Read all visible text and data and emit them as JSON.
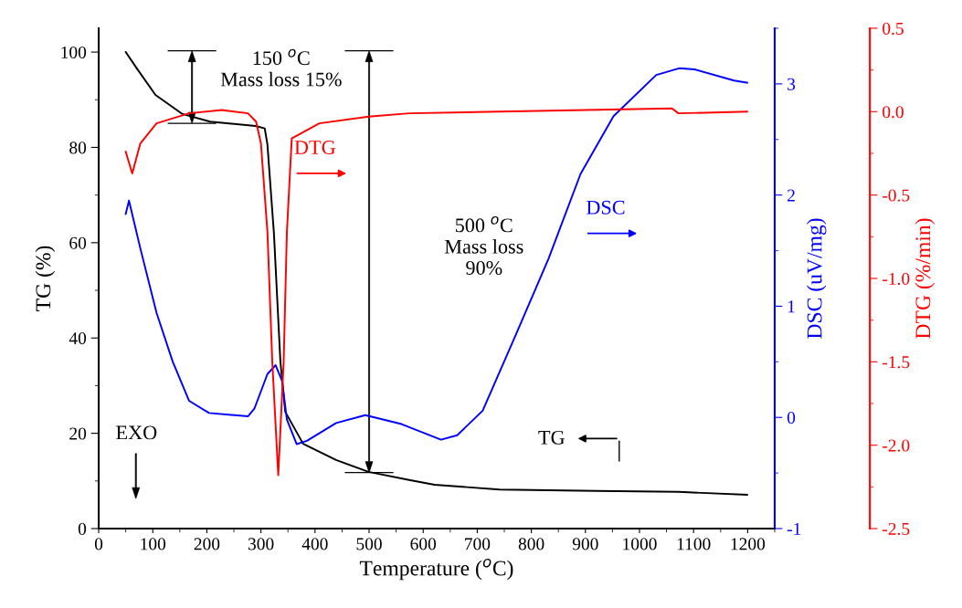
{
  "chart_data": {
    "type": "line",
    "xlabel": "Temperature ($^{o}$C)",
    "ylabel": "TG (%)",
    "y2label": "DSC (uV/mg)",
    "y3label": "DTG (%/min)",
    "xlim": [
      0,
      1250
    ],
    "xticks": [
      0,
      100,
      200,
      300,
      400,
      500,
      600,
      700,
      800,
      900,
      1000,
      1100,
      1200
    ],
    "ylim": [
      0,
      105
    ],
    "yticks": [
      0,
      20,
      40,
      60,
      80,
      100
    ],
    "y2lim": [
      -1,
      3.5
    ],
    "y2ticks": [
      -1,
      0,
      1,
      2,
      3
    ],
    "y3lim": [
      -2.5,
      0.5
    ],
    "y3ticks": [
      {
        "value": -2.5,
        "label": "-2.5"
      },
      {
        "value": -2.0,
        "label": "-2.0"
      },
      {
        "value": -1.5,
        "label": "-1.5"
      },
      {
        "value": -1.0,
        "label": "-1.0"
      },
      {
        "value": -0.5,
        "label": "-0.5"
      },
      {
        "value": 0,
        "label": "0.0"
      },
      {
        "value": 0.5,
        "label": "0.5"
      }
    ],
    "grid": false,
    "marker": "none",
    "line_style": "solid",
    "series": [
      {
        "name": "TG",
        "color": "#000000",
        "x": [
          50,
          71,
          105,
          155,
          206,
          290,
          307,
          312,
          324,
          336,
          345,
          378,
          439,
          499,
          574,
          621,
          741,
          921,
          1072,
          1199
        ],
        "values": [
          100,
          96.5,
          91,
          87,
          85.4,
          84.5,
          84,
          80.6,
          62,
          35,
          24.5,
          17.8,
          14.4,
          11.9,
          10.2,
          9.2,
          8.2,
          7.9,
          7.7,
          7.1
        ]
      },
      {
        "name": "DTG",
        "color": "#ff0000",
        "axis": "y3",
        "x": [
          50,
          62,
          77,
          107,
          167,
          228,
          276,
          291,
          300,
          312,
          321,
          332,
          342,
          348,
          357,
          408,
          499,
          574,
          741,
          1060,
          1072,
          1199
        ],
        "values": [
          -0.24,
          -0.37,
          -0.19,
          -0.07,
          -0.01,
          0.01,
          -0.01,
          -0.06,
          -0.19,
          -0.72,
          -1.5,
          -2.18,
          -1.5,
          -0.72,
          -0.16,
          -0.07,
          -0.03,
          -0.01,
          0.0,
          0.02,
          -0.01,
          0.0
        ]
      },
      {
        "name": "DSC",
        "color": "#0000ff",
        "axis": "y2",
        "x": [
          50,
          56,
          77,
          107,
          137,
          167,
          204,
          276,
          288,
          312,
          327,
          339,
          348,
          366,
          385,
          439,
          493,
          560,
          633,
          663,
          710,
          771,
          832,
          891,
          952,
          1031,
          1073,
          1102,
          1175,
          1199
        ],
        "values": [
          1.83,
          1.95,
          1.52,
          0.94,
          0.5,
          0.15,
          0.04,
          0.01,
          0.08,
          0.39,
          0.47,
          0.33,
          -0.02,
          -0.24,
          -0.21,
          -0.05,
          0.02,
          -0.06,
          -0.2,
          -0.16,
          0.06,
          0.74,
          1.43,
          2.19,
          2.71,
          3.08,
          3.14,
          3.13,
          3.03,
          3.01
        ]
      }
    ],
    "annotations": [
      "150 $^{o}$C\nMass loss 15%",
      "500 $^{o}$C\nMass loss\n90%",
      "EXO"
    ]
  }
}
